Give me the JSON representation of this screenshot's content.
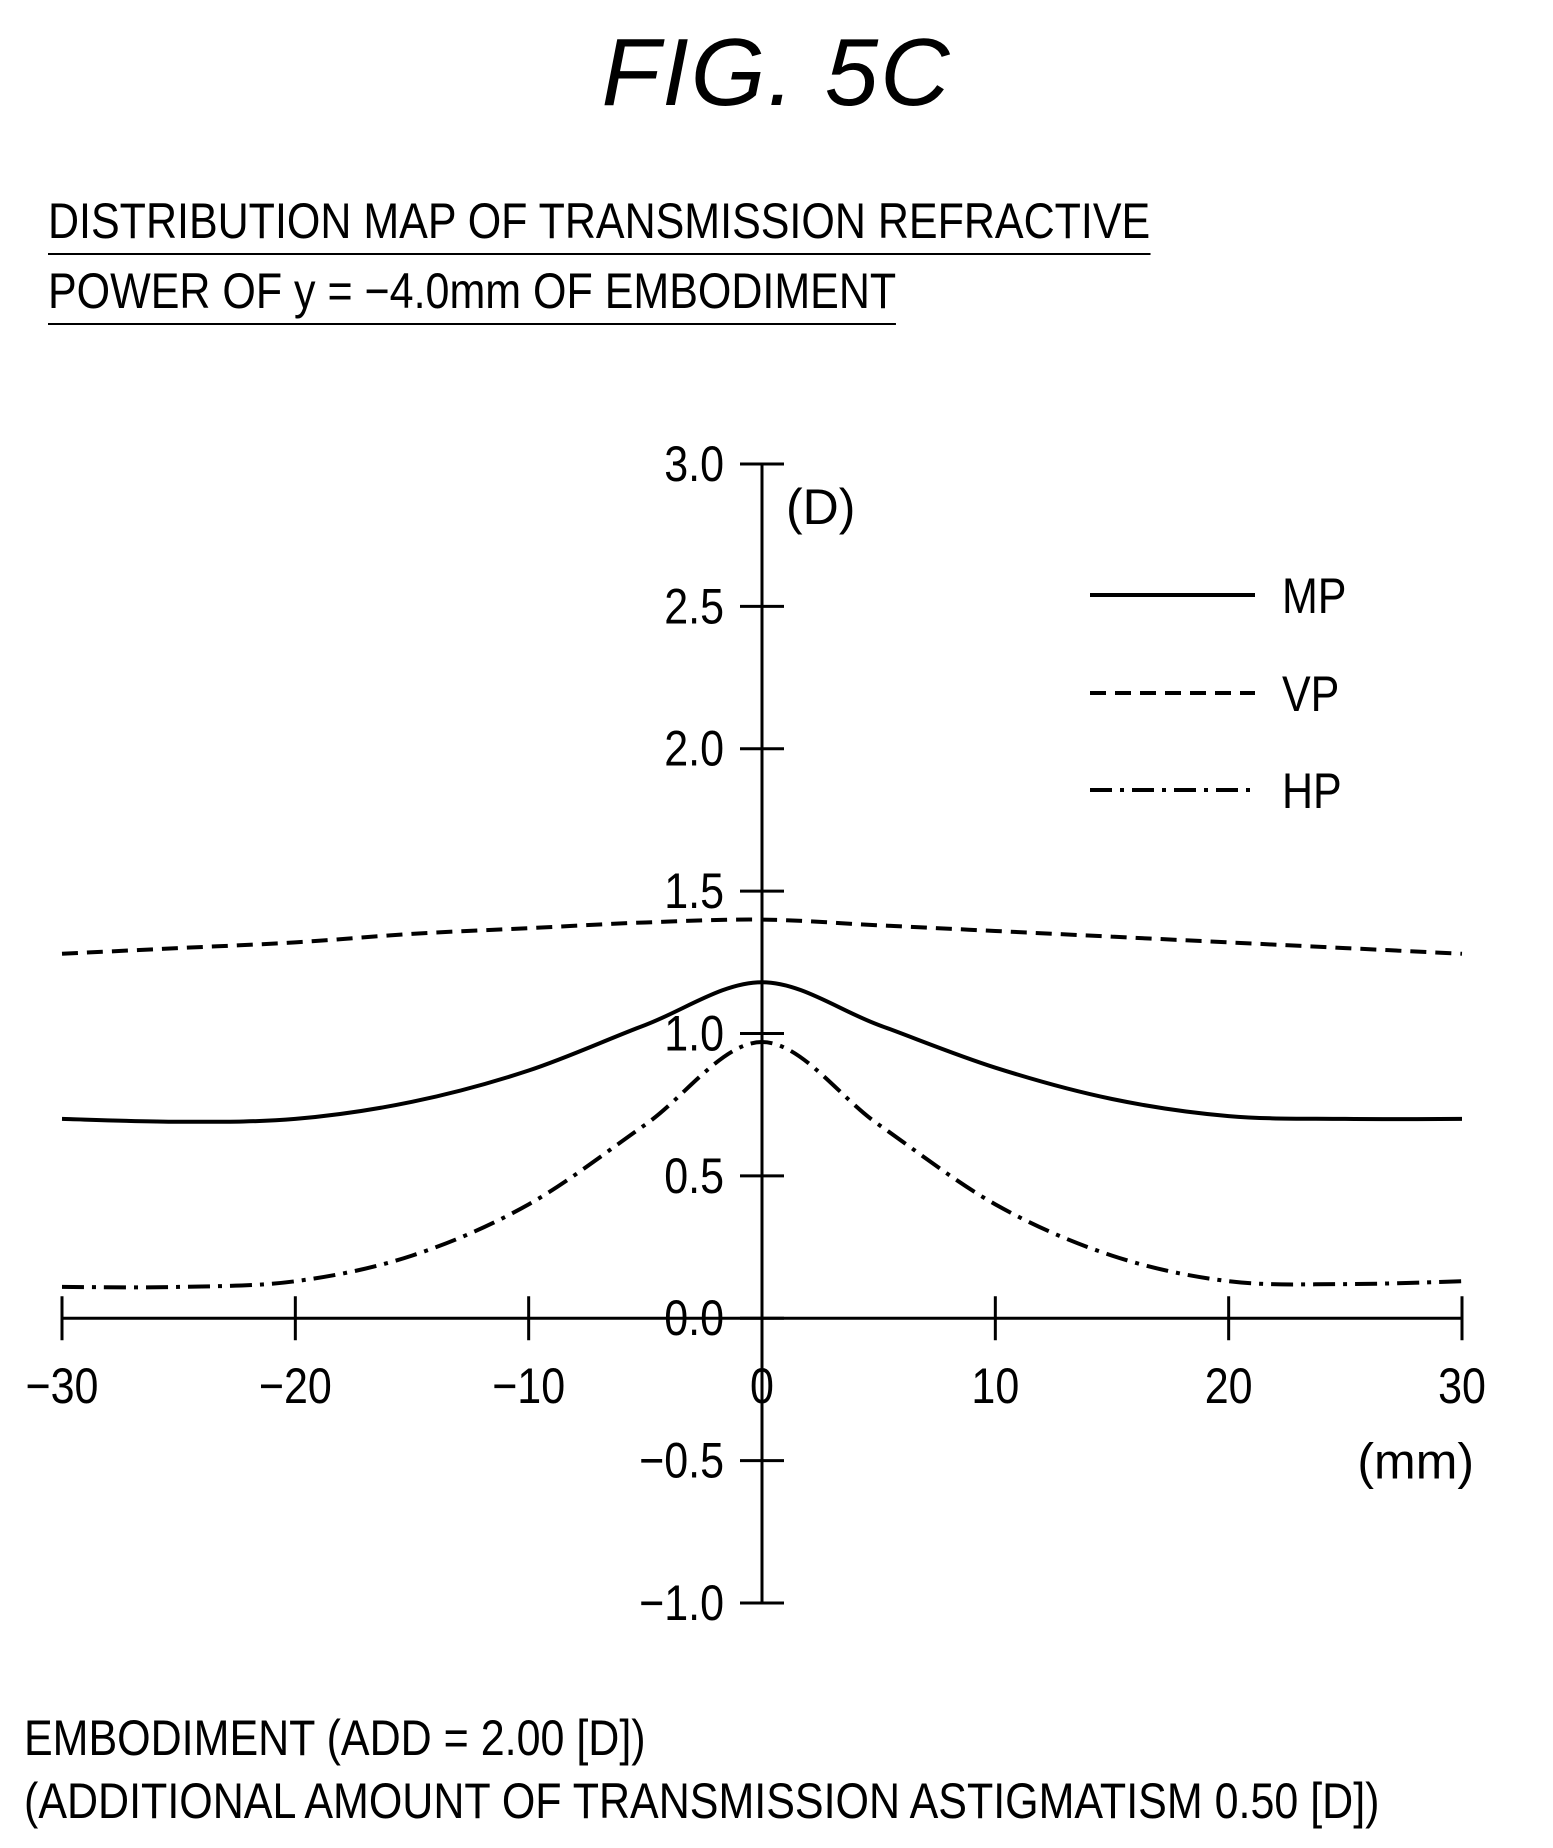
{
  "figure_label": "FIG. 5C",
  "heading": {
    "line1": "DISTRIBUTION MAP OF TRANSMISSION REFRACTIVE",
    "line2": "POWER OF y = −4.0mm OF EMBODIMENT"
  },
  "footer": {
    "line1": "EMBODIMENT (ADD = 2.00 [D])",
    "line2": "(ADDITIONAL AMOUNT OF TRANSMISSION ASTIGMATISM 0.50 [D])"
  },
  "chart_data": {
    "type": "line",
    "title": "",
    "xlabel": "(mm)",
    "ylabel": "(D)",
    "xlim": [
      -30,
      30
    ],
    "ylim": [
      -1.0,
      3.0
    ],
    "x_ticks": [
      -30,
      -20,
      -10,
      0,
      10,
      20,
      30
    ],
    "x_tick_labels": [
      "−30",
      "−20",
      "−10",
      "0",
      "10",
      "20",
      "30"
    ],
    "y_ticks": [
      -1.0,
      -0.5,
      0.0,
      0.5,
      1.0,
      1.5,
      2.0,
      2.5,
      3.0
    ],
    "y_tick_labels": [
      "−1.0",
      "−0.5",
      "0.0",
      "0.5",
      "1.0",
      "1.5",
      "2.0",
      "2.5",
      "3.0"
    ],
    "grid": false,
    "legend_position": "top-right",
    "x": [
      -30,
      -25,
      -20,
      -15,
      -10,
      -5,
      0,
      5,
      10,
      15,
      20,
      25,
      30
    ],
    "series": [
      {
        "name": "MP",
        "line_style": "solid",
        "values": [
          0.7,
          0.69,
          0.7,
          0.76,
          0.87,
          1.03,
          1.18,
          1.03,
          0.88,
          0.77,
          0.71,
          0.7,
          0.7
        ]
      },
      {
        "name": "VP",
        "line_style": "dashed",
        "values": [
          1.28,
          1.3,
          1.32,
          1.35,
          1.37,
          1.39,
          1.4,
          1.38,
          1.36,
          1.34,
          1.32,
          1.3,
          1.28
        ]
      },
      {
        "name": "HP",
        "line_style": "dash-dot",
        "values": [
          0.11,
          0.11,
          0.13,
          0.22,
          0.4,
          0.68,
          0.97,
          0.68,
          0.4,
          0.22,
          0.13,
          0.12,
          0.13
        ]
      }
    ],
    "colors": {
      "line": "#000000",
      "background": "#ffffff"
    }
  }
}
